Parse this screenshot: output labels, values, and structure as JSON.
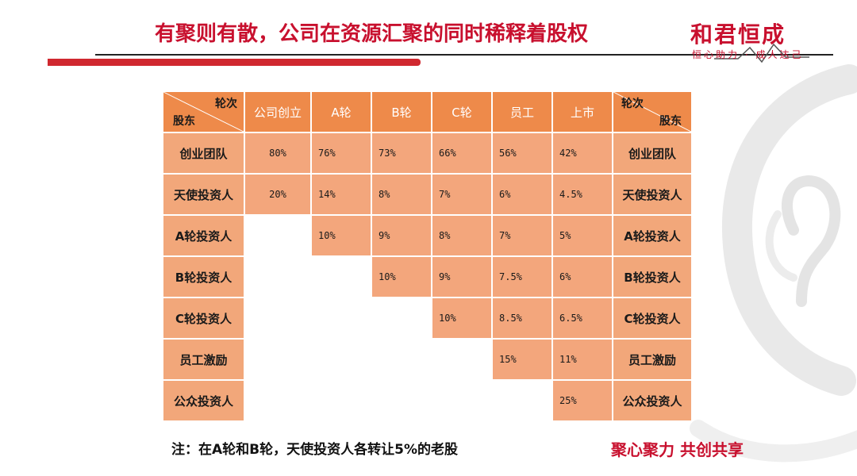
{
  "title": "有聚则有散，公司在资源汇聚的同时稀释着股权",
  "logo": {
    "main": "和君恒成",
    "sub": "恒心助力 · 成人达己"
  },
  "table": {
    "corner_top": "轮次",
    "corner_bottom": "股东",
    "rounds": [
      "公司创立",
      "A轮",
      "B轮",
      "C轮",
      "员工",
      "上市"
    ],
    "shareholders": [
      "创业团队",
      "天使投资人",
      "A轮投资人",
      "B轮投资人",
      "C轮投资人",
      "员工激励",
      "公众投资人"
    ],
    "rows": [
      [
        "80%",
        "76%",
        "73%",
        "66%",
        "56%",
        "42%"
      ],
      [
        "20%",
        "14%",
        "8%",
        "7%",
        "6%",
        "4.5%"
      ],
      [
        "",
        "10%",
        "9%",
        "8%",
        "7%",
        "5%"
      ],
      [
        "",
        "",
        "10%",
        "9%",
        "7.5%",
        "6%"
      ],
      [
        "",
        "",
        "",
        "10%",
        "8.5%",
        "6.5%"
      ],
      [
        "",
        "",
        "",
        "",
        "15%",
        "11%"
      ],
      [
        "",
        "",
        "",
        "",
        "",
        "25%"
      ]
    ]
  },
  "note": "注：在A轮和B轮，天使投资人各转让5%的老股",
  "slogan": "聚心聚力 共创共享",
  "colors": {
    "accent": "#c8102e",
    "header": "#ee8a4a",
    "cell": "#f3a67c"
  }
}
